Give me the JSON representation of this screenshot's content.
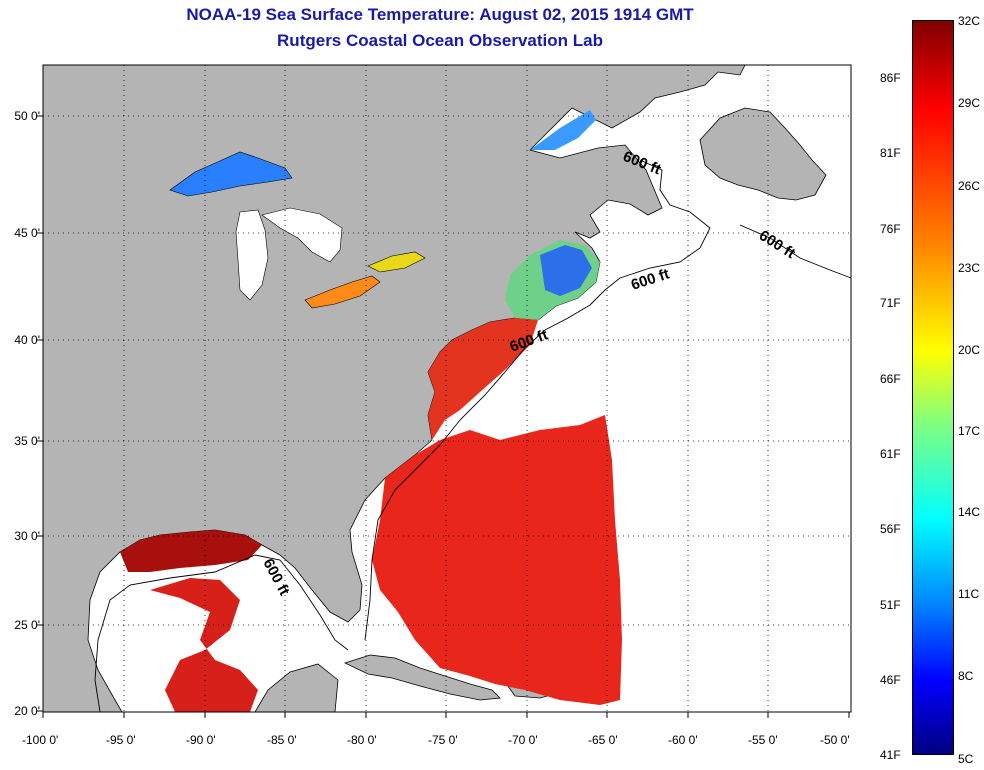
{
  "title": {
    "line1": "NOAA-19 Sea Surface Temperature:  August 02, 2015 1914 GMT",
    "line2": "Rutgers Coastal Ocean Observation Lab"
  },
  "map": {
    "lon_range": [
      -100,
      -50
    ],
    "lat_range": [
      20,
      53
    ],
    "lon_ticks": [
      {
        "value": -100,
        "label": "-100 0'"
      },
      {
        "value": -95,
        "label": "-95 0'"
      },
      {
        "value": -90,
        "label": "-90 0'"
      },
      {
        "value": -85,
        "label": "-85 0'"
      },
      {
        "value": -80,
        "label": "-80 0'"
      },
      {
        "value": -75,
        "label": "-75 0'"
      },
      {
        "value": -70,
        "label": "-70 0'"
      },
      {
        "value": -65,
        "label": "-65 0'"
      },
      {
        "value": -60,
        "label": "-60 0'"
      },
      {
        "value": -55,
        "label": "-55 0'"
      },
      {
        "value": -50,
        "label": "-50 0'"
      }
    ],
    "lat_ticks": [
      {
        "value": 50,
        "label": "50 0'"
      },
      {
        "value": 45,
        "label": "45 0'"
      },
      {
        "value": 40,
        "label": "40 0'"
      },
      {
        "value": 35,
        "label": "35 0'"
      },
      {
        "value": 30,
        "label": "30 0'"
      },
      {
        "value": 25,
        "label": "25 0'"
      },
      {
        "value": 20,
        "label": "20 0'"
      }
    ],
    "isobath_label": "600 ft",
    "colors": {
      "land": "#b4b4b4",
      "ocean_nodata": "#ffffff",
      "warm_sst": "#e8261c",
      "grid": "#000000"
    }
  },
  "colorbar": {
    "celsius_labels": [
      "32C",
      "29C",
      "26C",
      "23C",
      "20C",
      "17C",
      "14C",
      "11C",
      "8C",
      "5C"
    ],
    "fahrenheit_labels": [
      "86F",
      "81F",
      "76F",
      "71F",
      "66F",
      "61F",
      "56F",
      "51F",
      "46F",
      "41F"
    ],
    "range_c": [
      5,
      32
    ],
    "colormap": "jet"
  }
}
